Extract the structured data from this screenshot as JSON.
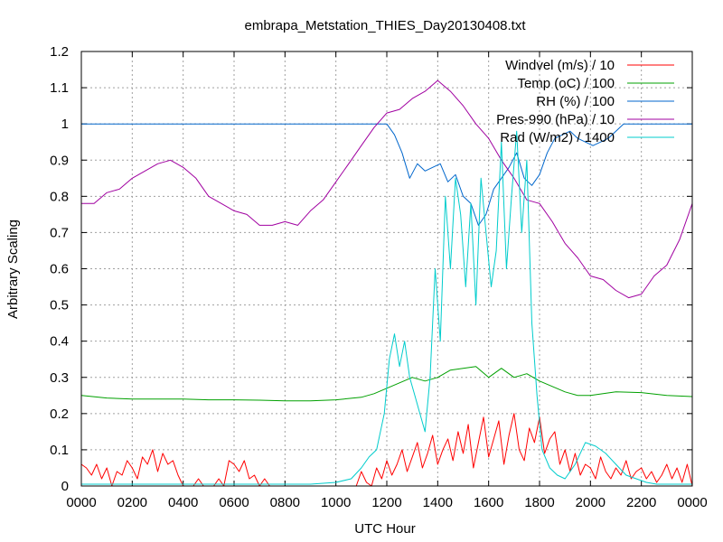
{
  "chart_data": {
    "type": "line",
    "title": "embrapa_Metstation_THIES_Day20130408.txt",
    "xlabel": "UTC Hour",
    "ylabel": "Arbitrary Scaling",
    "xlim": [
      0,
      24
    ],
    "ylim": [
      0,
      1.2
    ],
    "grid": true,
    "legend_position": "top-right",
    "x_ticks": [
      {
        "value": 0,
        "label": "0000"
      },
      {
        "value": 2,
        "label": "0200"
      },
      {
        "value": 4,
        "label": "0400"
      },
      {
        "value": 6,
        "label": "0600"
      },
      {
        "value": 8,
        "label": "0800"
      },
      {
        "value": 10,
        "label": "1000"
      },
      {
        "value": 12,
        "label": "1200"
      },
      {
        "value": 14,
        "label": "1400"
      },
      {
        "value": 16,
        "label": "1600"
      },
      {
        "value": 18,
        "label": "1800"
      },
      {
        "value": 20,
        "label": "2000"
      },
      {
        "value": 22,
        "label": "2200"
      },
      {
        "value": 24,
        "label": "0000"
      }
    ],
    "y_ticks": [
      {
        "value": 0,
        "label": "0"
      },
      {
        "value": 0.1,
        "label": "0.1"
      },
      {
        "value": 0.2,
        "label": "0.2"
      },
      {
        "value": 0.3,
        "label": "0.3"
      },
      {
        "value": 0.4,
        "label": "0.4"
      },
      {
        "value": 0.5,
        "label": "0.5"
      },
      {
        "value": 0.6,
        "label": "0.6"
      },
      {
        "value": 0.7,
        "label": "0.7"
      },
      {
        "value": 0.8,
        "label": "0.8"
      },
      {
        "value": 0.9,
        "label": "0.9"
      },
      {
        "value": 1.0,
        "label": "1"
      },
      {
        "value": 1.1,
        "label": "1.1"
      },
      {
        "value": 1.2,
        "label": "1.2"
      }
    ],
    "series": [
      {
        "name": "Windvel (m/s) / 10",
        "color": "#ff0000",
        "x": [
          0,
          0.2,
          0.4,
          0.6,
          0.8,
          1.0,
          1.2,
          1.4,
          1.6,
          1.8,
          2.0,
          2.2,
          2.4,
          2.6,
          2.8,
          3.0,
          3.2,
          3.4,
          3.6,
          3.8,
          4.0,
          4.2,
          4.4,
          4.6,
          4.8,
          5.0,
          5.2,
          5.4,
          5.6,
          5.8,
          6.0,
          6.2,
          6.4,
          6.6,
          6.8,
          7.0,
          7.2,
          7.4,
          7.6,
          7.8,
          8.0,
          9.0,
          10.0,
          10.8,
          11.0,
          11.2,
          11.4,
          11.6,
          11.8,
          12.0,
          12.2,
          12.4,
          12.6,
          12.8,
          13.0,
          13.2,
          13.4,
          13.6,
          13.8,
          14.0,
          14.2,
          14.4,
          14.6,
          14.8,
          15.0,
          15.2,
          15.4,
          15.6,
          15.8,
          16.0,
          16.2,
          16.4,
          16.6,
          16.8,
          17.0,
          17.2,
          17.4,
          17.6,
          17.8,
          18.0,
          18.2,
          18.4,
          18.6,
          18.8,
          19.0,
          19.2,
          19.4,
          19.6,
          19.8,
          20.0,
          20.2,
          20.4,
          20.6,
          20.8,
          21.0,
          21.2,
          21.4,
          21.6,
          21.8,
          22.0,
          22.2,
          22.4,
          22.6,
          22.8,
          23.0,
          23.2,
          23.4,
          23.6,
          23.8,
          24.0
        ],
        "y": [
          0.06,
          0.05,
          0.03,
          0.06,
          0.02,
          0.05,
          0.0,
          0.04,
          0.03,
          0.07,
          0.05,
          0.02,
          0.08,
          0.06,
          0.1,
          0.04,
          0.09,
          0.06,
          0.07,
          0.03,
          0.0,
          0.0,
          0.0,
          0.02,
          0.0,
          0.0,
          0.0,
          0.02,
          0.0,
          0.07,
          0.06,
          0.04,
          0.07,
          0.02,
          0.03,
          0.0,
          0.02,
          0.0,
          0.0,
          0.0,
          0.0,
          0.0,
          0.0,
          0.0,
          0.04,
          0.01,
          0.0,
          0.05,
          0.02,
          0.07,
          0.03,
          0.06,
          0.1,
          0.04,
          0.08,
          0.12,
          0.05,
          0.09,
          0.14,
          0.06,
          0.1,
          0.13,
          0.07,
          0.15,
          0.09,
          0.17,
          0.05,
          0.12,
          0.19,
          0.08,
          0.13,
          0.18,
          0.06,
          0.14,
          0.2,
          0.1,
          0.07,
          0.16,
          0.12,
          0.19,
          0.09,
          0.13,
          0.15,
          0.06,
          0.1,
          0.04,
          0.09,
          0.03,
          0.06,
          0.05,
          0.02,
          0.08,
          0.04,
          0.02,
          0.05,
          0.03,
          0.07,
          0.02,
          0.04,
          0.05,
          0.02,
          0.04,
          0.01,
          0.03,
          0.06,
          0.02,
          0.05,
          0.01,
          0.06,
          0.0
        ]
      },
      {
        "name": "Temp (oC) / 100",
        "color": "#00a000",
        "x": [
          0,
          1,
          2,
          3,
          4,
          5,
          6,
          7,
          8,
          9,
          10,
          11,
          11.5,
          12,
          12.5,
          13,
          13.5,
          14,
          14.5,
          15,
          15.5,
          16,
          16.5,
          17,
          17.5,
          18,
          18.5,
          19,
          19.5,
          20,
          20.5,
          21,
          22,
          23,
          24
        ],
        "y": [
          0.25,
          0.243,
          0.24,
          0.24,
          0.24,
          0.238,
          0.238,
          0.237,
          0.235,
          0.235,
          0.238,
          0.245,
          0.255,
          0.27,
          0.285,
          0.3,
          0.29,
          0.3,
          0.32,
          0.325,
          0.33,
          0.3,
          0.325,
          0.3,
          0.31,
          0.29,
          0.275,
          0.26,
          0.25,
          0.25,
          0.255,
          0.26,
          0.258,
          0.25,
          0.247
        ]
      },
      {
        "name": "RH (%) / 100",
        "color": "#0066cc",
        "x": [
          0,
          10,
          11.5,
          12,
          12.3,
          12.6,
          12.9,
          13.2,
          13.5,
          13.8,
          14.1,
          14.4,
          14.7,
          15.0,
          15.3,
          15.6,
          15.9,
          16.2,
          16.5,
          16.8,
          17.1,
          17.4,
          17.7,
          18.0,
          18.3,
          18.6,
          18.9,
          19.2,
          19.5,
          19.8,
          20.1,
          20.4,
          20.7,
          21.0,
          21.3,
          21.6,
          22.0,
          23.0,
          24.0
        ],
        "y": [
          1.0,
          1.0,
          1.0,
          1.0,
          0.97,
          0.92,
          0.85,
          0.89,
          0.87,
          0.88,
          0.89,
          0.84,
          0.86,
          0.8,
          0.78,
          0.72,
          0.75,
          0.82,
          0.85,
          0.88,
          0.92,
          0.85,
          0.83,
          0.86,
          0.92,
          0.96,
          0.97,
          0.98,
          0.96,
          0.95,
          0.94,
          0.95,
          0.96,
          0.98,
          1.0,
          1.0,
          1.0,
          1.0,
          1.0
        ]
      },
      {
        "name": "Pres-990 (hPa) / 10",
        "color": "#a000a0",
        "x": [
          0,
          0.5,
          1.0,
          1.5,
          2.0,
          2.5,
          3.0,
          3.5,
          4.0,
          4.5,
          5.0,
          5.5,
          6.0,
          6.5,
          7.0,
          7.5,
          8.0,
          8.5,
          9.0,
          9.5,
          10.0,
          10.5,
          11.0,
          11.5,
          12.0,
          12.5,
          13.0,
          13.5,
          14.0,
          14.5,
          15.0,
          15.5,
          16.0,
          16.5,
          17.0,
          17.5,
          18.0,
          18.5,
          19.0,
          19.5,
          20.0,
          20.5,
          21.0,
          21.5,
          22.0,
          22.5,
          23.0,
          23.5,
          24.0
        ],
        "y": [
          0.78,
          0.78,
          0.81,
          0.82,
          0.85,
          0.87,
          0.89,
          0.9,
          0.88,
          0.85,
          0.8,
          0.78,
          0.76,
          0.75,
          0.72,
          0.72,
          0.73,
          0.72,
          0.76,
          0.79,
          0.84,
          0.89,
          0.94,
          0.99,
          1.03,
          1.04,
          1.07,
          1.09,
          1.12,
          1.09,
          1.05,
          1.0,
          0.96,
          0.9,
          0.85,
          0.79,
          0.78,
          0.73,
          0.67,
          0.63,
          0.58,
          0.57,
          0.54,
          0.52,
          0.53,
          0.58,
          0.61,
          0.68,
          0.78
        ]
      },
      {
        "name": "Rad (W/m2) / 1400",
        "color": "#00cccc",
        "x": [
          0,
          9.0,
          10.0,
          10.6,
          11.0,
          11.3,
          11.6,
          11.9,
          12.1,
          12.3,
          12.5,
          12.7,
          12.9,
          13.1,
          13.3,
          13.5,
          13.7,
          13.9,
          14.1,
          14.3,
          14.5,
          14.7,
          14.9,
          15.1,
          15.3,
          15.5,
          15.7,
          15.9,
          16.1,
          16.3,
          16.5,
          16.7,
          16.9,
          17.1,
          17.3,
          17.5,
          17.7,
          17.9,
          18.1,
          18.4,
          18.7,
          19.0,
          19.4,
          19.8,
          20.2,
          20.6,
          21.0,
          21.4,
          21.8,
          22.2,
          22.6,
          23.0,
          24.0
        ],
        "y": [
          0.005,
          0.005,
          0.01,
          0.02,
          0.05,
          0.08,
          0.1,
          0.2,
          0.35,
          0.42,
          0.33,
          0.4,
          0.3,
          0.25,
          0.2,
          0.15,
          0.3,
          0.6,
          0.4,
          0.8,
          0.6,
          0.85,
          0.75,
          0.55,
          0.78,
          0.5,
          0.85,
          0.7,
          0.55,
          0.65,
          0.95,
          0.6,
          0.8,
          0.98,
          0.7,
          0.9,
          0.45,
          0.25,
          0.1,
          0.05,
          0.03,
          0.02,
          0.06,
          0.12,
          0.11,
          0.09,
          0.06,
          0.03,
          0.02,
          0.01,
          0.005,
          0.005,
          0.005
        ]
      }
    ]
  }
}
